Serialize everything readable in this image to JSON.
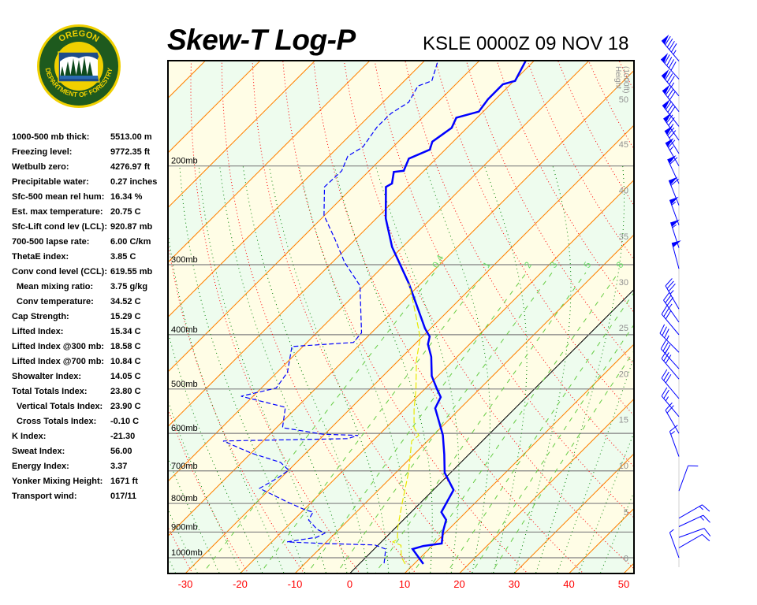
{
  "header": {
    "title": "Skew-T Log-P",
    "station": "KSLE 0000Z 09 NOV 18",
    "logo_text": [
      "OREGON",
      "DEPARTMENT OF FORESTRY"
    ]
  },
  "colors": {
    "temperature": "#0000ff",
    "dewpoint": "#0000ff",
    "parcel": "#e8e800",
    "isotherm": "#ff8000",
    "zero_isotherm": "#000000",
    "dry_adiabat": "#ff0000",
    "moist_adiabat": "#008000",
    "mixing_ratio": "#66cc44",
    "band_a": "#fffde6",
    "band_b": "#eefcee",
    "temp_tick": "#ff0000",
    "height_tick": "#909090",
    "logo_green": "#1e5a1e",
    "logo_gold": "#f0d000"
  },
  "stats": [
    {
      "label": "1000-500 mb thick:",
      "value": "5513.00 m"
    },
    {
      "label": "Freezing level:",
      "value": "9772.35 ft"
    },
    {
      "label": "Wetbulb zero:",
      "value": "4276.97 ft"
    },
    {
      "label": "Precipitable water:",
      "value": "0.27 inches"
    },
    {
      "label": "Sfc-500 mean rel hum:",
      "value": "16.34 %"
    },
    {
      "label": "Est. max temperature:",
      "value": "20.75 C"
    },
    {
      "label": "Sfc-Lift cond lev (LCL):",
      "value": "920.87 mb"
    },
    {
      "label": "700-500 lapse rate:",
      "value": "6.00 C/km"
    },
    {
      "label": "ThetaE index:",
      "value": "3.85 C"
    },
    {
      "label": "Conv cond level (CCL):",
      "value": "619.55 mb"
    },
    {
      "label": "Mean mixing ratio:",
      "value": "3.75 g/kg",
      "indent": true
    },
    {
      "label": "Conv temperature:",
      "value": "34.52 C",
      "indent": true
    },
    {
      "label": "Cap Strength:",
      "value": "15.29 C"
    },
    {
      "label": "Lifted Index:",
      "value": "15.34 C"
    },
    {
      "label": "Lifted Index @300 mb:",
      "value": "18.58 C"
    },
    {
      "label": "Lifted Index @700 mb:",
      "value": "10.84 C"
    },
    {
      "label": "Showalter Index:",
      "value": "14.05 C"
    },
    {
      "label": "Total Totals Index:",
      "value": "23.80 C"
    },
    {
      "label": "Vertical Totals Index:",
      "value": "23.90 C",
      "indent": true
    },
    {
      "label": "Cross Totals Index:",
      "value": "-0.10 C",
      "indent": true
    },
    {
      "label": "K Index:",
      "value": "-21.30"
    },
    {
      "label": "Sweat Index:",
      "value": "56.00"
    },
    {
      "label": "Energy Index:",
      "value": "3.37"
    },
    {
      "label": "Yonker Mixing Height:",
      "value": "1671 ft"
    },
    {
      "label": "Transport wind:",
      "value": "017/11"
    }
  ],
  "chart_data": {
    "type": "skew-t",
    "title": "Skew-T Log-P",
    "subtitle": "KSLE 0000Z 09 NOV 18",
    "x_ticks": [
      -30,
      -20,
      -10,
      0,
      10,
      20,
      30,
      40,
      50
    ],
    "xlim_at_bottom_C": [
      -33,
      52
    ],
    "pressure_range_mb": [
      1067,
      130
    ],
    "pressure_levels": [
      {
        "p": 200,
        "label": "200mb"
      },
      {
        "p": 300,
        "label": "300mb"
      },
      {
        "p": 400,
        "label": "400mb"
      },
      {
        "p": 500,
        "label": "500mb"
      },
      {
        "p": 600,
        "label": "600mb"
      },
      {
        "p": 700,
        "label": "700mb"
      },
      {
        "p": 800,
        "label": "800mb"
      },
      {
        "p": 900,
        "label": "900mb"
      },
      {
        "p": 1000,
        "label": "1000mb"
      }
    ],
    "height_axis": {
      "label": [
        "Height",
        "(1000ft)"
      ],
      "ticks": [
        {
          "kft": 0,
          "p": 1002
        },
        {
          "kft": 5,
          "p": 829
        },
        {
          "kft": 10,
          "p": 685
        },
        {
          "kft": 15,
          "p": 567
        },
        {
          "kft": 20,
          "p": 470
        },
        {
          "kft": 25,
          "p": 389
        },
        {
          "kft": 30,
          "p": 322
        },
        {
          "kft": 35,
          "p": 267
        },
        {
          "kft": 40,
          "p": 221
        },
        {
          "kft": 45,
          "p": 183
        },
        {
          "kft": 50,
          "p": 152
        }
      ]
    },
    "mixing_ratio_labels": [
      "0.4",
      "1",
      "2",
      "3",
      "5",
      "8"
    ],
    "mixing_ratio_lines_gkg": [
      0.4,
      1,
      2,
      3,
      5,
      8,
      12,
      16,
      20
    ],
    "isotherm_step_C": 10,
    "dry_adiabats_K": [
      230,
      460,
      10
    ],
    "series": [
      {
        "key": "temperature",
        "style": "solid-thick",
        "points": [
          [
            1026,
            11.7
          ],
          [
            965,
            7.0
          ],
          [
            953,
            8.4
          ],
          [
            943,
            11.3
          ],
          [
            899,
            9.4
          ],
          [
            856,
            7.8
          ],
          [
            829,
            5.5
          ],
          [
            757,
            3.7
          ],
          [
            705,
            -1.1
          ],
          [
            654,
            -4.5
          ],
          [
            604,
            -8.3
          ],
          [
            541,
            -14.6
          ],
          [
            517,
            -15.6
          ],
          [
            499,
            -17.9
          ],
          [
            474,
            -21.1
          ],
          [
            438,
            -24.7
          ],
          [
            416,
            -27.6
          ],
          [
            403,
            -28.7
          ],
          [
            390,
            -31.0
          ],
          [
            324,
            -42.2
          ],
          [
            279,
            -51.9
          ],
          [
            248,
            -58.3
          ],
          [
            218,
            -64.0
          ],
          [
            215,
            -63.5
          ],
          [
            205,
            -65.3
          ],
          [
            204,
            -63.7
          ],
          [
            194,
            -65.0
          ],
          [
            187,
            -62.8
          ],
          [
            181,
            -63.8
          ],
          [
            171,
            -62.8
          ],
          [
            164,
            -63.8
          ],
          [
            160,
            -60.8
          ],
          [
            152,
            -61.4
          ],
          [
            143,
            -61.4
          ],
          [
            141,
            -59.8
          ],
          [
            130,
            -61.5
          ]
        ]
      },
      {
        "key": "dewpoint",
        "style": "dashed",
        "points": [
          [
            1023,
            4.4
          ],
          [
            965,
            2.1
          ],
          [
            949,
            -0.6
          ],
          [
            943,
            -10.3
          ],
          [
            937,
            -17.2
          ],
          [
            919,
            -12.6
          ],
          [
            904,
            -11.9
          ],
          [
            890,
            -14.0
          ],
          [
            856,
            -17.3
          ],
          [
            829,
            -17.9
          ],
          [
            821,
            -19.8
          ],
          [
            795,
            -24.5
          ],
          [
            752,
            -32.0
          ],
          [
            721,
            -30.6
          ],
          [
            698,
            -30.0
          ],
          [
            676,
            -32.9
          ],
          [
            650,
            -40.1
          ],
          [
            619,
            -47.3
          ],
          [
            613,
            -25.0
          ],
          [
            605,
            -23.7
          ],
          [
            602,
            -30.3
          ],
          [
            586,
            -38.9
          ],
          [
            539,
            -42.1
          ],
          [
            515,
            -52.2
          ],
          [
            498,
            -47.3
          ],
          [
            467,
            -48.1
          ],
          [
            420,
            -52.0
          ],
          [
            413,
            -41.5
          ],
          [
            397,
            -41.8
          ],
          [
            327,
            -50.7
          ],
          [
            297,
            -57.8
          ],
          [
            270,
            -63.8
          ],
          [
            245,
            -70.1
          ],
          [
            218,
            -75.2
          ],
          [
            204,
            -75.0
          ],
          [
            192,
            -76.6
          ],
          [
            185,
            -75.5
          ],
          [
            170,
            -76.6
          ],
          [
            161,
            -76.5
          ],
          [
            154,
            -75.3
          ],
          [
            144,
            -76.6
          ],
          [
            141,
            -75.0
          ],
          [
            130,
            -77.5
          ]
        ]
      },
      {
        "key": "parcel",
        "style": "dashed-yellow",
        "points": [
          [
            1026,
            8.4
          ],
          [
            997,
            6.4
          ],
          [
            950,
            4.2
          ],
          [
            937,
            2.1
          ],
          [
            928,
            2.5
          ],
          [
            884,
            0.4
          ],
          [
            803,
            -3.1
          ],
          [
            705,
            -7.7
          ],
          [
            619,
            -12.9
          ],
          [
            605,
            -12.6
          ],
          [
            586,
            -14.9
          ],
          [
            544,
            -18.2
          ],
          [
            499,
            -21.7
          ],
          [
            444,
            -26.8
          ],
          [
            406,
            -30.1
          ],
          [
            390,
            -32.2
          ],
          [
            346,
            -38.6
          ],
          [
            324,
            -42.2
          ]
        ]
      }
    ],
    "winds": [
      [
        130,
        320,
        95
      ],
      [
        140,
        318,
        90
      ],
      [
        150,
        320,
        85
      ],
      [
        160,
        322,
        80
      ],
      [
        170,
        322,
        80
      ],
      [
        180,
        325,
        75
      ],
      [
        190,
        328,
        70
      ],
      [
        200,
        330,
        65
      ],
      [
        215,
        335,
        60
      ],
      [
        235,
        338,
        60
      ],
      [
        255,
        340,
        55
      ],
      [
        280,
        342,
        55
      ],
      [
        305,
        345,
        50
      ],
      [
        360,
        330,
        35
      ],
      [
        380,
        325,
        35
      ],
      [
        400,
        320,
        30
      ],
      [
        430,
        315,
        35
      ],
      [
        460,
        318,
        30
      ],
      [
        480,
        320,
        30
      ],
      [
        520,
        320,
        30
      ],
      [
        560,
        320,
        25
      ],
      [
        600,
        330,
        20
      ],
      [
        660,
        340,
        15
      ],
      [
        760,
        20,
        10
      ],
      [
        850,
        60,
        15
      ],
      [
        880,
        65,
        15
      ],
      [
        920,
        70,
        10
      ],
      [
        960,
        60,
        10
      ],
      [
        1000,
        340,
        5
      ]
    ]
  }
}
